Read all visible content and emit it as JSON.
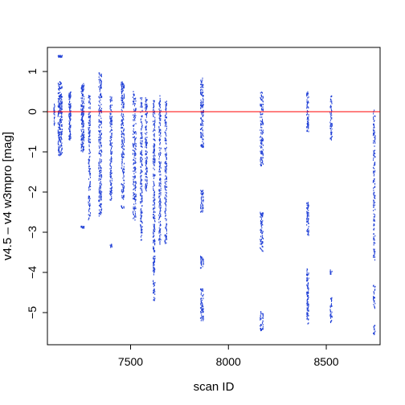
{
  "chart_data": {
    "type": "scatter",
    "title": "",
    "xlabel": "scan ID",
    "ylabel": "v4.5 – v4 w3mpro [mag]",
    "xlim": [
      7075,
      8775
    ],
    "ylim": [
      -5.8,
      1.6
    ],
    "x_ticks": [
      7500,
      8000,
      8500
    ],
    "y_ticks": [
      1,
      0,
      -1,
      -2,
      -3,
      -4,
      -5
    ],
    "y_tick_labels": [
      "1",
      "0",
      "−1",
      "−2",
      "−3",
      "−4",
      "−5"
    ],
    "grid": false,
    "reference_line": {
      "y": 0,
      "color": "#ff0000"
    },
    "point_color": "#1f3fd6",
    "columns": [
      {
        "x": 7110,
        "spread": 1,
        "ranges": [
          [
            -0.4,
            0.2
          ]
        ],
        "n": 25
      },
      {
        "x": 7140,
        "spread": 4,
        "ranges": [
          [
            -1.1,
            0.75
          ],
          [
            1.35,
            1.4
          ]
        ],
        "n": 260
      },
      {
        "x": 7190,
        "spread": 2,
        "ranges": [
          [
            -0.7,
            0.5
          ]
        ],
        "n": 120
      },
      {
        "x": 7255,
        "spread": 3,
        "ranges": [
          [
            -1.0,
            0.7
          ],
          [
            -2.9,
            -2.85
          ]
        ],
        "n": 200
      },
      {
        "x": 7290,
        "spread": 2,
        "ranges": [
          [
            -2.7,
            0.4
          ]
        ],
        "n": 150
      },
      {
        "x": 7345,
        "spread": 3,
        "ranges": [
          [
            -2.6,
            1.0
          ]
        ],
        "n": 240
      },
      {
        "x": 7400,
        "spread": 2,
        "ranges": [
          [
            -2.2,
            0.4
          ],
          [
            -3.4,
            -3.3
          ]
        ],
        "n": 160
      },
      {
        "x": 7460,
        "spread": 3,
        "ranges": [
          [
            -2.2,
            0.75
          ],
          [
            -2.4,
            -2.35
          ]
        ],
        "n": 220
      },
      {
        "x": 7520,
        "spread": 3,
        "ranges": [
          [
            -2.7,
            0.5
          ]
        ],
        "n": 200
      },
      {
        "x": 7555,
        "spread": 2,
        "ranges": [
          [
            -3.2,
            0.35
          ]
        ],
        "n": 170
      },
      {
        "x": 7580,
        "spread": 2,
        "ranges": [
          [
            -2.0,
            0.35
          ]
        ],
        "n": 130
      },
      {
        "x": 7620,
        "spread": 2,
        "ranges": [
          [
            -3.5,
            0.3
          ],
          [
            -4.7,
            -3.6
          ]
        ],
        "n": 260
      },
      {
        "x": 7650,
        "spread": 2,
        "ranges": [
          [
            -3.3,
            0.4
          ]
        ],
        "n": 190
      },
      {
        "x": 7680,
        "spread": 2,
        "ranges": [
          [
            -3.3,
            0.3
          ]
        ],
        "n": 170
      },
      {
        "x": 7865,
        "spread": 3,
        "ranges": [
          [
            -0.9,
            0.85
          ],
          [
            -2.5,
            -1.95
          ],
          [
            -3.9,
            -3.6
          ],
          [
            -5.2,
            -4.4
          ]
        ],
        "n": 260
      },
      {
        "x": 8170,
        "spread": 3,
        "ranges": [
          [
            -1.35,
            0.5
          ],
          [
            -3.5,
            -2.5
          ],
          [
            -5.45,
            -4.95
          ]
        ],
        "n": 240
      },
      {
        "x": 8405,
        "spread": 2,
        "ranges": [
          [
            -0.5,
            0.5
          ],
          [
            -3.1,
            -2.2
          ],
          [
            -5.3,
            -3.9
          ]
        ],
        "n": 220
      },
      {
        "x": 8525,
        "spread": 2,
        "ranges": [
          [
            -0.7,
            0.4
          ],
          [
            -4.05,
            -3.9
          ],
          [
            -5.25,
            -4.6
          ]
        ],
        "n": 110
      },
      {
        "x": 8745,
        "spread": 2,
        "ranges": [
          [
            -3.7,
            0.05
          ],
          [
            -4.9,
            -4.3
          ],
          [
            -5.55,
            -5.3
          ]
        ],
        "n": 200
      }
    ]
  }
}
